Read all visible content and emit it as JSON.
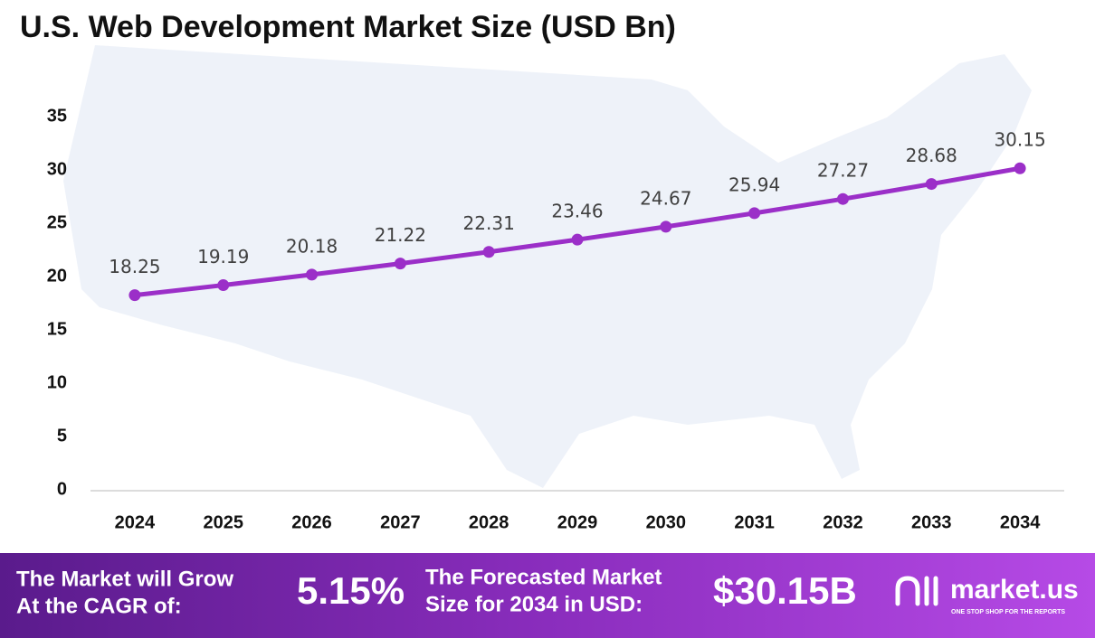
{
  "chart_data": {
    "type": "line",
    "title": "U.S. Web Development Market Size (USD Bn)",
    "categories": [
      "2024",
      "2025",
      "2026",
      "2027",
      "2028",
      "2029",
      "2030",
      "2031",
      "2032",
      "2033",
      "2034"
    ],
    "values": [
      18.25,
      19.19,
      20.18,
      21.22,
      22.31,
      23.46,
      24.67,
      25.94,
      27.27,
      28.68,
      30.15
    ],
    "color": "#9b2fc8",
    "ylim": [
      0,
      35
    ],
    "yticks": [
      0,
      5,
      10,
      15,
      20,
      25,
      30,
      35
    ],
    "grid": false
  },
  "banner": {
    "cagr_label": [
      "The Market will Grow",
      "At the CAGR of:"
    ],
    "cagr_value": "5.15%",
    "forecast_label": [
      "The Forecasted Market",
      "Size for 2034 in USD:"
    ],
    "forecast_value": "$30.15B",
    "brand": "market.us",
    "tagline": "ONE STOP SHOP FOR THE REPORTS"
  }
}
